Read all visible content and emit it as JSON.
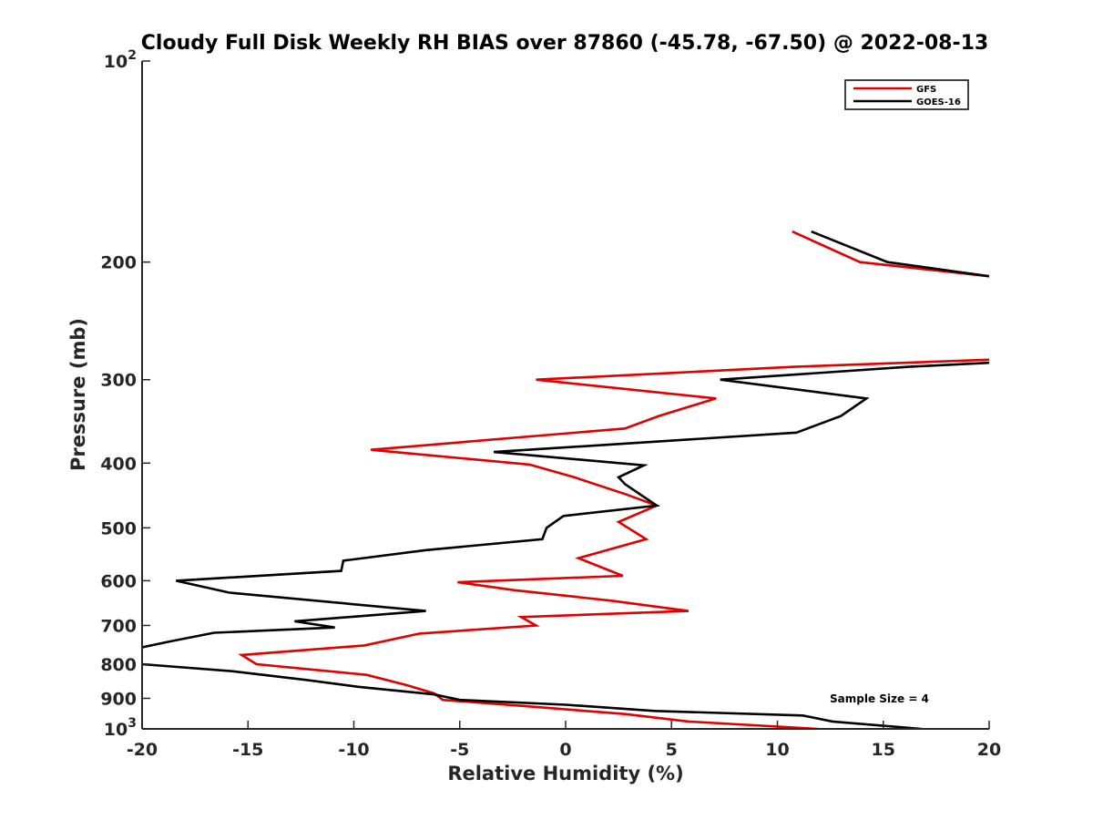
{
  "chart_data": {
    "type": "line",
    "title": "Cloudy Full Disk Weekly RH BIAS over 87860 (-45.78, -67.50) @ 2022-08-13",
    "xlabel": "Relative Humidity (%)",
    "ylabel": "Pressure (mb)",
    "xlim": [
      -20,
      20
    ],
    "ylim": [
      100,
      1000
    ],
    "y_scale": "log",
    "y_reversed": true,
    "grid": false,
    "x_ticks": [
      -20,
      -15,
      -10,
      -5,
      0,
      5,
      10,
      15,
      20
    ],
    "x_tick_labels": [
      "-20",
      "-15",
      "-10",
      "-5",
      "0",
      "5",
      "10",
      "15",
      "20"
    ],
    "y_ticks": [
      100,
      200,
      300,
      400,
      500,
      600,
      700,
      800,
      900,
      1000
    ],
    "y_tick_labels": [
      {
        "base": "10",
        "exp": "2"
      },
      {
        "base": "200",
        "exp": ""
      },
      {
        "base": "300",
        "exp": ""
      },
      {
        "base": "400",
        "exp": ""
      },
      {
        "base": "500",
        "exp": ""
      },
      {
        "base": "600",
        "exp": ""
      },
      {
        "base": "700",
        "exp": ""
      },
      {
        "base": "800",
        "exp": ""
      },
      {
        "base": "900",
        "exp": ""
      },
      {
        "base": "10",
        "exp": "3"
      }
    ],
    "legend": {
      "position": "top-right"
    },
    "annotation": "Sample Size = 4",
    "series": [
      {
        "name": "GFS",
        "color": "#e00000",
        "segments": [
          [
            {
              "x": 10.7,
              "p": 180
            },
            {
              "x": 13.9,
              "p": 200
            },
            {
              "x": 20.0,
              "p": 210
            }
          ],
          [
            {
              "x": 20.0,
              "p": 280
            },
            {
              "x": 10.8,
              "p": 287
            },
            {
              "x": -1.4,
              "p": 300
            },
            {
              "x": 7.1,
              "p": 320
            },
            {
              "x": 4.4,
              "p": 340
            },
            {
              "x": 2.8,
              "p": 355
            },
            {
              "x": -9.2,
              "p": 382
            },
            {
              "x": -1.7,
              "p": 402
            },
            {
              "x": 0.4,
              "p": 420
            },
            {
              "x": 2.8,
              "p": 445
            },
            {
              "x": 4.3,
              "p": 463
            },
            {
              "x": 2.5,
              "p": 490
            },
            {
              "x": 3.8,
              "p": 520
            },
            {
              "x": 0.6,
              "p": 555
            },
            {
              "x": 2.7,
              "p": 590
            },
            {
              "x": -5.1,
              "p": 603
            },
            {
              "x": -2.4,
              "p": 620
            },
            {
              "x": 2.2,
              "p": 643
            },
            {
              "x": 5.8,
              "p": 666
            },
            {
              "x": -2.1,
              "p": 680
            },
            {
              "x": -1.4,
              "p": 700
            },
            {
              "x": -6.9,
              "p": 720
            },
            {
              "x": -9.5,
              "p": 750
            },
            {
              "x": -15.3,
              "p": 775
            },
            {
              "x": -14.6,
              "p": 800
            },
            {
              "x": -9.4,
              "p": 830
            },
            {
              "x": -7.5,
              "p": 860
            },
            {
              "x": -6.2,
              "p": 885
            },
            {
              "x": -5.8,
              "p": 905
            },
            {
              "x": -1.8,
              "p": 925
            },
            {
              "x": 2.8,
              "p": 950
            },
            {
              "x": 5.8,
              "p": 975
            },
            {
              "x": 11.9,
              "p": 1000
            }
          ]
        ]
      },
      {
        "name": "GOES-16",
        "color": "#000000",
        "segments": [
          [
            {
              "x": 11.6,
              "p": 180
            },
            {
              "x": 15.2,
              "p": 200
            },
            {
              "x": 20.0,
              "p": 210
            }
          ],
          [
            {
              "x": 20.0,
              "p": 283
            },
            {
              "x": 16.2,
              "p": 287
            },
            {
              "x": 7.3,
              "p": 300
            },
            {
              "x": 14.2,
              "p": 320
            },
            {
              "x": 13.0,
              "p": 340
            },
            {
              "x": 10.9,
              "p": 360
            },
            {
              "x": -3.4,
              "p": 385
            },
            {
              "x": 3.7,
              "p": 403
            },
            {
              "x": 2.5,
              "p": 420
            },
            {
              "x": 2.8,
              "p": 430
            },
            {
              "x": 4.3,
              "p": 463
            },
            {
              "x": -0.1,
              "p": 480
            },
            {
              "x": -0.9,
              "p": 500
            },
            {
              "x": -1.1,
              "p": 520
            },
            {
              "x": -6.6,
              "p": 540
            },
            {
              "x": -10.5,
              "p": 560
            },
            {
              "x": -10.6,
              "p": 580
            },
            {
              "x": -18.4,
              "p": 600
            },
            {
              "x": -15.9,
              "p": 625
            },
            {
              "x": -6.6,
              "p": 666
            },
            {
              "x": -12.8,
              "p": 690
            },
            {
              "x": -10.9,
              "p": 705
            },
            {
              "x": -16.6,
              "p": 718
            },
            {
              "x": -18.7,
              "p": 740
            },
            {
              "x": -20.0,
              "p": 755
            }
          ],
          [
            {
              "x": -20.0,
              "p": 800
            },
            {
              "x": -15.7,
              "p": 820
            },
            {
              "x": -12.2,
              "p": 845
            },
            {
              "x": -9.8,
              "p": 865
            },
            {
              "x": -6.2,
              "p": 888
            },
            {
              "x": -5.0,
              "p": 905
            },
            {
              "x": 0.0,
              "p": 920
            },
            {
              "x": 4.2,
              "p": 940
            },
            {
              "x": 11.2,
              "p": 955
            },
            {
              "x": 12.6,
              "p": 975
            },
            {
              "x": 16.8,
              "p": 1000
            }
          ]
        ]
      }
    ]
  }
}
